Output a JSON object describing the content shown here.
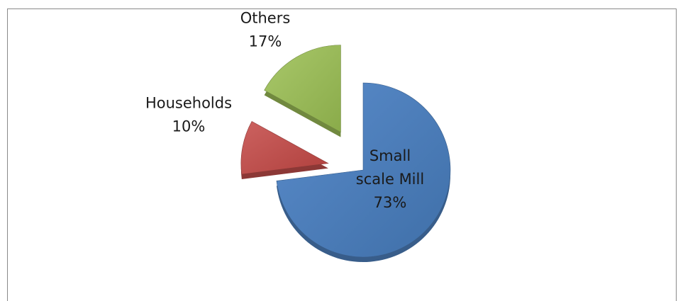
{
  "chart_data": {
    "type": "pie",
    "exploded": true,
    "three_d": true,
    "slices": [
      {
        "label": "Small scale Mill",
        "value": 73,
        "value_label": "73%",
        "color": "#4f81bd",
        "side_color": "#385d8a",
        "label_lines": [
          "Small",
          "scale Mill",
          "73%"
        ]
      },
      {
        "label": "Households",
        "value": 10,
        "value_label": "10%",
        "color": "#c0504d",
        "side_color": "#8c3836",
        "label_lines": [
          "Households",
          "10%"
        ]
      },
      {
        "label": "Others",
        "value": 17,
        "value_label": "17%",
        "color": "#9bbb59",
        "side_color": "#71893f",
        "label_lines": [
          "Others",
          "17%"
        ]
      }
    ]
  }
}
